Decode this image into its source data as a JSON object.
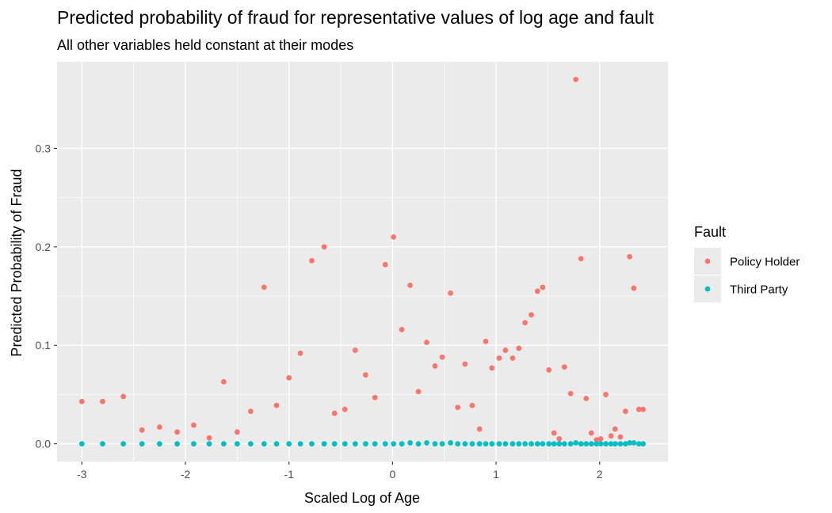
{
  "chart_data": {
    "type": "scatter",
    "title": "Predicted probability of fraud for representative values of log age and fault",
    "subtitle": "All other variables held constant at their modes",
    "xlabel": "Scaled Log of Age",
    "ylabel": "Predicted Probability of Fraud",
    "xlim": [
      -3.24,
      2.66
    ],
    "ylim": [
      -0.018,
      0.388
    ],
    "x_ticks": [
      -3,
      -2,
      -1,
      0,
      1,
      2
    ],
    "y_ticks": [
      0.0,
      0.1,
      0.2,
      0.3
    ],
    "x_tick_labels": [
      "-3",
      "-2",
      "-1",
      "0",
      "1",
      "2"
    ],
    "y_tick_labels": [
      "0.0",
      "0.1",
      "0.2",
      "0.3"
    ],
    "grid": true,
    "legend": {
      "title": "Fault",
      "position": "right",
      "entries": [
        "Policy Holder",
        "Third Party"
      ]
    },
    "colors": {
      "Policy Holder": "#F8766D",
      "Third Party": "#00BFC4",
      "panel": "#EBEBEB",
      "grid": "#FFFFFF"
    },
    "series": [
      {
        "name": "Policy Holder",
        "points": [
          [
            -3.0,
            0.043
          ],
          [
            -2.8,
            0.043
          ],
          [
            -2.6,
            0.048
          ],
          [
            -2.42,
            0.014
          ],
          [
            -2.25,
            0.017
          ],
          [
            -2.08,
            0.012
          ],
          [
            -1.92,
            0.019
          ],
          [
            -1.77,
            0.006
          ],
          [
            -1.63,
            0.063
          ],
          [
            -1.5,
            0.012
          ],
          [
            -1.37,
            0.033
          ],
          [
            -1.24,
            0.159
          ],
          [
            -1.12,
            0.039
          ],
          [
            -1.0,
            0.067
          ],
          [
            -0.89,
            0.092
          ],
          [
            -0.78,
            0.186
          ],
          [
            -0.66,
            0.2
          ],
          [
            -0.56,
            0.031
          ],
          [
            -0.46,
            0.035
          ],
          [
            -0.36,
            0.095
          ],
          [
            -0.26,
            0.07
          ],
          [
            -0.17,
            0.047
          ],
          [
            -0.07,
            0.182
          ],
          [
            0.01,
            0.21
          ],
          [
            0.09,
            0.116
          ],
          [
            0.17,
            0.161
          ],
          [
            0.25,
            0.053
          ],
          [
            0.33,
            0.103
          ],
          [
            0.41,
            0.079
          ],
          [
            0.48,
            0.088
          ],
          [
            0.56,
            0.153
          ],
          [
            0.63,
            0.037
          ],
          [
            0.7,
            0.081
          ],
          [
            0.77,
            0.039
          ],
          [
            0.84,
            0.015
          ],
          [
            0.9,
            0.104
          ],
          [
            0.96,
            0.077
          ],
          [
            1.03,
            0.087
          ],
          [
            1.09,
            0.095
          ],
          [
            1.16,
            0.087
          ],
          [
            1.22,
            0.097
          ],
          [
            1.28,
            0.123
          ],
          [
            1.34,
            0.131
          ],
          [
            1.4,
            0.155
          ],
          [
            1.45,
            0.159
          ],
          [
            1.51,
            0.075
          ],
          [
            1.56,
            0.011
          ],
          [
            1.61,
            0.005
          ],
          [
            1.66,
            0.078
          ],
          [
            1.72,
            0.051
          ],
          [
            1.77,
            0.37
          ],
          [
            1.82,
            0.188
          ],
          [
            1.87,
            0.046
          ],
          [
            1.92,
            0.011
          ],
          [
            1.97,
            0.004
          ],
          [
            2.01,
            0.005
          ],
          [
            2.06,
            0.05
          ],
          [
            2.11,
            0.008
          ],
          [
            2.15,
            0.015
          ],
          [
            2.2,
            0.007
          ],
          [
            2.25,
            0.033
          ],
          [
            2.29,
            0.19
          ],
          [
            2.33,
            0.158
          ],
          [
            2.38,
            0.035
          ],
          [
            2.42,
            0.035
          ]
        ]
      },
      {
        "name": "Third Party",
        "points": [
          [
            -3.0,
            0.0
          ],
          [
            -2.8,
            0.0
          ],
          [
            -2.6,
            0.0
          ],
          [
            -2.42,
            0.0
          ],
          [
            -2.25,
            0.0
          ],
          [
            -2.08,
            0.0
          ],
          [
            -1.92,
            0.0
          ],
          [
            -1.77,
            0.0
          ],
          [
            -1.63,
            0.0
          ],
          [
            -1.5,
            0.0
          ],
          [
            -1.37,
            0.0
          ],
          [
            -1.24,
            0.0
          ],
          [
            -1.12,
            0.0
          ],
          [
            -1.0,
            0.0
          ],
          [
            -0.89,
            0.0
          ],
          [
            -0.78,
            0.0
          ],
          [
            -0.66,
            0.0
          ],
          [
            -0.56,
            0.0
          ],
          [
            -0.46,
            0.0
          ],
          [
            -0.36,
            0.0
          ],
          [
            -0.26,
            0.0
          ],
          [
            -0.17,
            0.0
          ],
          [
            -0.07,
            0.0
          ],
          [
            0.01,
            0.0
          ],
          [
            0.09,
            0.0
          ],
          [
            0.17,
            0.001
          ],
          [
            0.25,
            0.0
          ],
          [
            0.33,
            0.001
          ],
          [
            0.41,
            0.0
          ],
          [
            0.48,
            0.0
          ],
          [
            0.56,
            0.001
          ],
          [
            0.63,
            0.0
          ],
          [
            0.7,
            0.0
          ],
          [
            0.77,
            0.0
          ],
          [
            0.84,
            0.0
          ],
          [
            0.9,
            0.0
          ],
          [
            0.96,
            0.0
          ],
          [
            1.03,
            0.0
          ],
          [
            1.09,
            0.0
          ],
          [
            1.16,
            0.0
          ],
          [
            1.22,
            0.0
          ],
          [
            1.28,
            0.0
          ],
          [
            1.34,
            0.0
          ],
          [
            1.4,
            0.0
          ],
          [
            1.45,
            0.0
          ],
          [
            1.51,
            0.0
          ],
          [
            1.56,
            0.0
          ],
          [
            1.61,
            0.0
          ],
          [
            1.66,
            0.0
          ],
          [
            1.72,
            0.0
          ],
          [
            1.77,
            0.001
          ],
          [
            1.82,
            0.0
          ],
          [
            1.87,
            0.0
          ],
          [
            1.92,
            0.0
          ],
          [
            1.97,
            0.0
          ],
          [
            2.01,
            0.0
          ],
          [
            2.06,
            0.0
          ],
          [
            2.11,
            0.0
          ],
          [
            2.15,
            0.0
          ],
          [
            2.2,
            0.0
          ],
          [
            2.25,
            0.0
          ],
          [
            2.29,
            0.001
          ],
          [
            2.33,
            0.001
          ],
          [
            2.38,
            0.0
          ],
          [
            2.42,
            0.0
          ]
        ]
      }
    ]
  }
}
